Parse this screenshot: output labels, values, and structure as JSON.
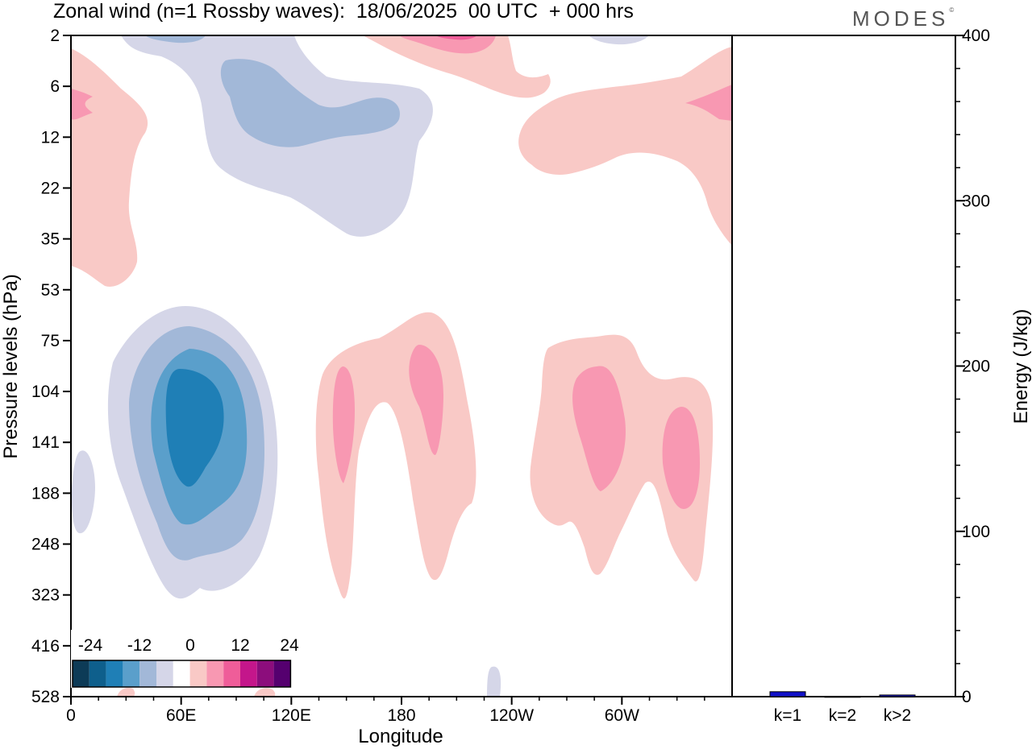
{
  "title": "Zonal wind (n=1 Rossby waves):  18/06/2025  00 UTC  + 000 hrs",
  "logo": "MODES",
  "logo_mark": "©",
  "chart_data": [
    {
      "type": "heatmap",
      "variable": "Zonal wind",
      "xlabel": "Longitude",
      "ylabel": "Pressure levels (hPa)",
      "x_ticks": [
        "0",
        "60E",
        "120E",
        "180",
        "120W",
        "60W"
      ],
      "x_tick_values": [
        0,
        60,
        120,
        180,
        240,
        300
      ],
      "xlim": [
        0,
        360
      ],
      "y_ticks": [
        "2",
        "6",
        "12",
        "22",
        "35",
        "53",
        "75",
        "104",
        "141",
        "188",
        "248",
        "323",
        "416",
        "528"
      ],
      "colorbar": {
        "tick_labels": [
          "-24",
          "-12",
          "0",
          "12",
          "24"
        ],
        "colors": [
          "#0d3b57",
          "#0e5f8c",
          "#1f7fb6",
          "#5a9fcb",
          "#a2b8d8",
          "#d5d6e8",
          "#ffffff",
          "#f9c9c6",
          "#f898b2",
          "#ef5d99",
          "#c4168b",
          "#8c0d7c",
          "#55006f"
        ]
      },
      "features": [
        {
          "sign": "negative",
          "level": -12,
          "lon": 58,
          "hPa": 141
        },
        {
          "sign": "negative",
          "level": -6,
          "lon": 130,
          "hPa": 8
        },
        {
          "sign": "positive",
          "level": 6,
          "lon": 199,
          "hPa": 120
        },
        {
          "sign": "positive",
          "level": 6,
          "lon": 286,
          "hPa": 130
        },
        {
          "sign": "positive",
          "level": 6,
          "lon": 340,
          "hPa": 8
        }
      ]
    },
    {
      "type": "bar",
      "ylabel": "Energy (J/kg)",
      "categories": [
        "k=1",
        "k=2",
        "k>2"
      ],
      "values": [
        3,
        0,
        1
      ],
      "ylim": [
        0,
        400
      ],
      "y_ticks": [
        "0",
        "100",
        "200",
        "300",
        "400"
      ],
      "bar_color": "#1010c8"
    }
  ]
}
